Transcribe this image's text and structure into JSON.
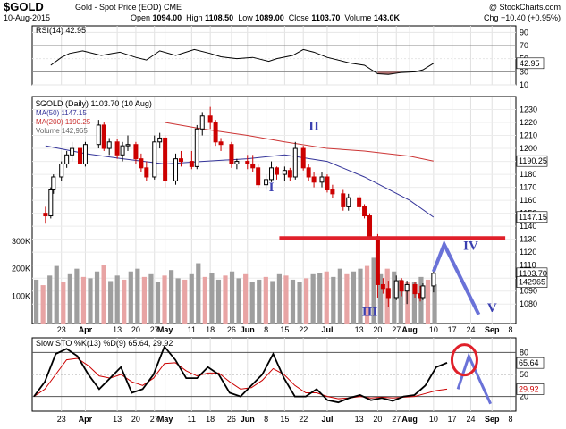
{
  "header": {
    "symbol": "$GOLD",
    "name": "Gold - Spot Price (EOD) CME",
    "brand": "@ StockCharts.com",
    "date": "10-Aug-2015",
    "open_label": "Open",
    "open": "1094.00",
    "high_label": "High",
    "high": "1108.50",
    "low_label": "Low",
    "low": "1089.00",
    "close_label": "Close",
    "close": "1103.70",
    "volume_label": "Volume",
    "volume": "143.0K",
    "change": "Chg +10.40 (+0.95%)"
  },
  "colors": {
    "up": "#000000",
    "down": "#cc0000",
    "ma50": "#333399",
    "ma200": "#cc3333",
    "vol_up": "#9e9e9e",
    "vol_down": "#e8a4a4",
    "annot_red": "#e0202a",
    "annot_blue": "#6a72d8",
    "sto_k": "#000000",
    "sto_d": "#cc0000",
    "rsi_fill": "#a05050"
  },
  "chart_data": [
    {
      "type": "line",
      "panel": "rsi",
      "legend": "RSI(14) 42.95",
      "last_value": "42.95",
      "ylim": [
        10,
        100
      ],
      "y_ticks": [
        "90",
        "70",
        "50",
        "30",
        "10"
      ],
      "x": [
        "2015-03-19",
        "2015-03-23",
        "2015-03-26",
        "2015-03-31",
        "2015-04-07",
        "2015-04-14",
        "2015-04-20",
        "2015-04-24",
        "2015-04-29",
        "2015-05-05",
        "2015-05-12",
        "2015-05-18",
        "2015-05-22",
        "2015-05-28",
        "2015-06-03",
        "2015-06-09",
        "2015-06-12",
        "2015-06-18",
        "2015-06-22",
        "2015-06-26",
        "2015-07-01",
        "2015-07-07",
        "2015-07-10",
        "2015-07-15",
        "2015-07-20",
        "2015-07-24",
        "2015-07-29",
        "2015-08-03",
        "2015-08-06",
        "2015-08-10"
      ],
      "values": [
        40,
        52,
        58,
        62,
        55,
        60,
        52,
        48,
        62,
        55,
        64,
        58,
        53,
        50,
        52,
        46,
        50,
        55,
        64,
        60,
        52,
        46,
        43,
        40,
        27,
        26,
        29,
        30,
        33,
        43
      ]
    },
    {
      "type": "candlestick",
      "panel": "price",
      "legend": {
        "title": "$GOLD (Daily) 1103.70 (10 Aug)",
        "ma50": "MA(50) 1147.15",
        "ma200": "MA(200) 1190.25",
        "volume": "Volume 142,965"
      },
      "ylim": [
        1065,
        1240
      ],
      "y_ticks": [
        "1230",
        "1220",
        "1210",
        "1200",
        "1190",
        "1180",
        "1170",
        "1160",
        "1150",
        "1140",
        "1130",
        "1120",
        "1110",
        "1100",
        "1090",
        "1080"
      ],
      "value_tags": [
        "1190.25",
        "1147.15",
        "1103.70",
        "142965"
      ],
      "ohlc": [
        [
          "2015-03-17",
          1150,
          1155,
          1142,
          1148
        ],
        [
          "2015-03-19",
          1148,
          1170,
          1146,
          1168
        ],
        [
          "2015-03-20",
          1168,
          1180,
          1165,
          1178
        ],
        [
          "2015-03-23",
          1178,
          1190,
          1175,
          1188
        ],
        [
          "2015-03-25",
          1188,
          1198,
          1185,
          1195
        ],
        [
          "2015-03-27",
          1195,
          1205,
          1190,
          1200
        ],
        [
          "2015-03-30",
          1200,
          1202,
          1185,
          1188
        ],
        [
          "2015-04-01",
          1188,
          1205,
          1186,
          1203
        ],
        [
          "2015-04-06",
          1203,
          1222,
          1200,
          1218
        ],
        [
          "2015-04-08",
          1218,
          1220,
          1198,
          1200
        ],
        [
          "2015-04-10",
          1200,
          1208,
          1195,
          1205
        ],
        [
          "2015-04-13",
          1205,
          1207,
          1192,
          1195
        ],
        [
          "2015-04-15",
          1195,
          1205,
          1190,
          1202
        ],
        [
          "2015-04-17",
          1202,
          1210,
          1198,
          1203
        ],
        [
          "2015-04-20",
          1203,
          1205,
          1188,
          1192
        ],
        [
          "2015-04-22",
          1192,
          1196,
          1182,
          1185
        ],
        [
          "2015-04-24",
          1185,
          1190,
          1175,
          1178
        ],
        [
          "2015-04-27",
          1178,
          1210,
          1176,
          1205
        ],
        [
          "2015-04-29",
          1205,
          1212,
          1200,
          1208
        ],
        [
          "2015-05-01",
          1208,
          1210,
          1170,
          1175
        ],
        [
          "2015-05-05",
          1175,
          1196,
          1172,
          1192
        ],
        [
          "2015-05-07",
          1192,
          1198,
          1186,
          1190
        ],
        [
          "2015-05-11",
          1190,
          1198,
          1184,
          1186
        ],
        [
          "2015-05-13",
          1186,
          1218,
          1184,
          1215
        ],
        [
          "2015-05-15",
          1215,
          1228,
          1210,
          1225
        ],
        [
          "2015-05-18",
          1225,
          1232,
          1215,
          1220
        ],
        [
          "2015-05-20",
          1220,
          1222,
          1202,
          1205
        ],
        [
          "2015-05-22",
          1205,
          1208,
          1198,
          1203
        ],
        [
          "2015-05-26",
          1203,
          1205,
          1185,
          1188
        ],
        [
          "2015-05-28",
          1188,
          1192,
          1184,
          1190
        ],
        [
          "2015-06-01",
          1190,
          1195,
          1184,
          1188
        ],
        [
          "2015-06-03",
          1188,
          1195,
          1182,
          1185
        ],
        [
          "2015-06-05",
          1185,
          1188,
          1170,
          1172
        ],
        [
          "2015-06-08",
          1172,
          1180,
          1168,
          1176
        ],
        [
          "2015-06-10",
          1176,
          1190,
          1174,
          1185
        ],
        [
          "2015-06-12",
          1185,
          1186,
          1176,
          1180
        ],
        [
          "2015-06-15",
          1180,
          1186,
          1175,
          1183
        ],
        [
          "2015-06-17",
          1183,
          1185,
          1175,
          1178
        ],
        [
          "2015-06-19",
          1178,
          1205,
          1176,
          1200
        ],
        [
          "2015-06-22",
          1200,
          1202,
          1183,
          1185
        ],
        [
          "2015-06-24",
          1185,
          1188,
          1175,
          1178
        ],
        [
          "2015-06-26",
          1178,
          1182,
          1170,
          1174
        ],
        [
          "2015-06-29",
          1174,
          1182,
          1170,
          1178
        ],
        [
          "2015-07-01",
          1178,
          1180,
          1166,
          1168
        ],
        [
          "2015-07-03",
          1168,
          1172,
          1162,
          1165
        ],
        [
          "2015-07-07",
          1165,
          1168,
          1152,
          1155
        ],
        [
          "2015-07-09",
          1155,
          1165,
          1152,
          1162
        ],
        [
          "2015-07-13",
          1162,
          1164,
          1152,
          1155
        ],
        [
          "2015-07-15",
          1155,
          1157,
          1146,
          1148
        ],
        [
          "2015-07-17",
          1148,
          1150,
          1130,
          1132
        ],
        [
          "2015-07-20",
          1132,
          1134,
          1085,
          1095
        ],
        [
          "2015-07-22",
          1095,
          1100,
          1088,
          1092
        ],
        [
          "2015-07-24",
          1092,
          1098,
          1078,
          1085
        ],
        [
          "2015-07-27",
          1085,
          1102,
          1083,
          1098
        ],
        [
          "2015-07-29",
          1098,
          1100,
          1086,
          1090
        ],
        [
          "2015-07-31",
          1090,
          1098,
          1080,
          1095
        ],
        [
          "2015-08-03",
          1095,
          1097,
          1085,
          1088
        ],
        [
          "2015-08-05",
          1088,
          1094,
          1082,
          1085
        ],
        [
          "2015-08-06",
          1085,
          1096,
          1083,
          1094
        ],
        [
          "2015-08-10",
          1094,
          1108.5,
          1089,
          1103.7
        ]
      ],
      "ma50": [
        [
          "2015-03-17",
          1202
        ],
        [
          "2015-04-01",
          1196
        ],
        [
          "2015-04-15",
          1192
        ],
        [
          "2015-05-01",
          1188
        ],
        [
          "2015-05-15",
          1190
        ],
        [
          "2015-06-01",
          1192
        ],
        [
          "2015-06-15",
          1195
        ],
        [
          "2015-07-01",
          1190
        ],
        [
          "2015-07-15",
          1178
        ],
        [
          "2015-08-01",
          1160
        ],
        [
          "2015-08-10",
          1147
        ]
      ],
      "ma200": [
        [
          "2015-05-01",
          1220
        ],
        [
          "2015-05-15",
          1215
        ],
        [
          "2015-06-01",
          1210
        ],
        [
          "2015-06-15",
          1205
        ],
        [
          "2015-07-01",
          1200
        ],
        [
          "2015-07-15",
          1198
        ],
        [
          "2015-08-01",
          1194
        ],
        [
          "2015-08-10",
          1190.25
        ]
      ]
    },
    {
      "type": "bar",
      "panel": "volume",
      "ylim": [
        0,
        300
      ],
      "y_ticks": [
        "300K",
        "200K",
        "100K"
      ],
      "values": [
        160,
        140,
        175,
        210,
        150,
        180,
        200,
        170,
        165,
        190,
        215,
        155,
        175,
        160,
        190,
        200,
        170,
        180,
        150,
        175,
        195,
        165,
        160,
        180,
        220,
        170,
        185,
        160,
        175,
        190,
        165,
        180,
        150,
        160,
        170,
        155,
        180,
        175,
        160,
        150,
        165,
        180,
        185,
        190,
        170,
        200,
        180,
        190,
        200,
        210,
        240,
        180,
        200,
        190,
        160,
        150,
        150,
        170,
        160,
        143
      ]
    },
    {
      "type": "line",
      "panel": "slow_sto",
      "legend": "Slow STO %K(13) %D(9) 65.64, 29.92",
      "last_values": [
        "65.64",
        "29.92"
      ],
      "ylim": [
        0,
        100
      ],
      "y_ticks": [
        "80",
        "50",
        "20"
      ],
      "series": [
        {
          "name": "%K(13)",
          "values": [
            20,
            40,
            78,
            85,
            75,
            50,
            30,
            45,
            60,
            25,
            30,
            50,
            88,
            70,
            45,
            45,
            60,
            50,
            25,
            20,
            35,
            50,
            78,
            45,
            20,
            20,
            30,
            15,
            12,
            18,
            22,
            15,
            18,
            14,
            20,
            22,
            35,
            60,
            66
          ]
        },
        {
          "name": "%D(9)",
          "values": [
            20,
            30,
            50,
            70,
            72,
            62,
            48,
            45,
            50,
            40,
            35,
            45,
            65,
            66,
            55,
            48,
            52,
            52,
            40,
            30,
            32,
            42,
            58,
            50,
            35,
            25,
            25,
            20,
            17,
            18,
            20,
            18,
            19,
            18,
            19,
            20,
            24,
            28,
            30
          ]
        }
      ]
    }
  ],
  "x_axis": {
    "labels": [
      {
        "text": "23",
        "date": "2015-03-23"
      },
      {
        "text": "Apr",
        "date": "2015-04-01",
        "bold": true
      },
      {
        "text": "13",
        "date": "2015-04-13"
      },
      {
        "text": "20",
        "date": "2015-04-20"
      },
      {
        "text": "27",
        "date": "2015-04-27"
      },
      {
        "text": "May",
        "date": "2015-05-01",
        "bold": true
      },
      {
        "text": "11",
        "date": "2015-05-11"
      },
      {
        "text": "18",
        "date": "2015-05-18"
      },
      {
        "text": "26",
        "date": "2015-05-26"
      },
      {
        "text": "Jun",
        "date": "2015-06-01",
        "bold": true
      },
      {
        "text": "8",
        "date": "2015-06-08"
      },
      {
        "text": "15",
        "date": "2015-06-15"
      },
      {
        "text": "22",
        "date": "2015-06-22"
      },
      {
        "text": "Jul",
        "date": "2015-07-01",
        "bold": true
      },
      {
        "text": "13",
        "date": "2015-07-13"
      },
      {
        "text": "20",
        "date": "2015-07-20"
      },
      {
        "text": "27",
        "date": "2015-07-27"
      },
      {
        "text": "Aug",
        "date": "2015-08-01",
        "bold": true
      },
      {
        "text": "10",
        "date": "2015-08-10"
      },
      {
        "text": "17",
        "date": "2015-08-17"
      },
      {
        "text": "24",
        "date": "2015-08-24"
      },
      {
        "text": "Sep",
        "date": "2015-09-01",
        "bold": true
      },
      {
        "text": "8",
        "date": "2015-09-08"
      }
    ]
  },
  "annotations": {
    "waves": [
      {
        "label": "I",
        "date": "2015-06-10",
        "price": 1167
      },
      {
        "label": "II",
        "date": "2015-06-26",
        "price": 1214
      },
      {
        "label": "III",
        "date": "2015-07-17",
        "price": 1071
      },
      {
        "label": "IV",
        "date": "2015-08-24",
        "price": 1122
      },
      {
        "label": "V",
        "date": "2015-09-01",
        "price": 1074
      }
    ],
    "support_line_price": 1131,
    "support_line_from": "2015-06-13",
    "support_line_to": "2015-09-06",
    "projection": [
      [
        "2015-08-10",
        1105
      ],
      [
        "2015-08-14",
        1126
      ],
      [
        "2015-08-27",
        1072
      ]
    ],
    "sto_projection": [
      [
        39,
        30
      ],
      [
        40,
        75
      ],
      [
        42,
        10
      ]
    ]
  }
}
